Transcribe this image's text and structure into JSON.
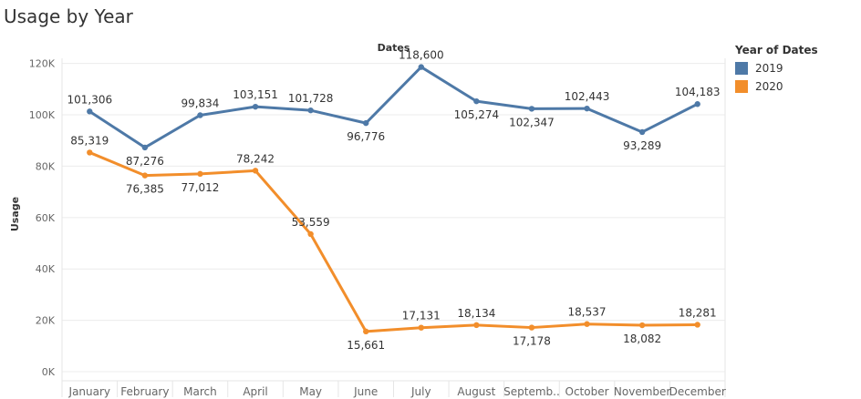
{
  "chart_data": {
    "type": "line",
    "title": "Usage by Year",
    "xlabel": "Dates",
    "ylabel": "Usage",
    "categories": [
      "January",
      "February",
      "March",
      "April",
      "May",
      "June",
      "July",
      "August",
      "Septemb..",
      "October",
      "November",
      "December"
    ],
    "yticks": [
      0,
      20000,
      40000,
      60000,
      80000,
      100000,
      120000
    ],
    "ytick_labels": [
      "0K",
      "20K",
      "40K",
      "60K",
      "80K",
      "100K",
      "120K"
    ],
    "ylim": [
      0,
      122000
    ],
    "grid": true,
    "legend": {
      "title": "Year of Dates",
      "placement": "right"
    },
    "series": [
      {
        "name": "2019",
        "color": "#4e79a7",
        "values": [
          101306,
          87276,
          99834,
          103151,
          101728,
          96776,
          118600,
          105274,
          102347,
          102443,
          93289,
          104183
        ],
        "labels": [
          "101,306",
          "87,276",
          "99,834",
          "103,151",
          "101,728",
          "96,776",
          "118,600",
          "105,274",
          "102,347",
          "102,443",
          "93,289",
          "104,183"
        ]
      },
      {
        "name": "2020",
        "color": "#f28e2b",
        "values": [
          85319,
          76385,
          77012,
          78242,
          53559,
          15661,
          17131,
          18134,
          17178,
          18537,
          18082,
          18281
        ],
        "labels": [
          "85,319",
          "76,385",
          "77,012",
          "78,242",
          "53,559",
          "15,661",
          "17,131",
          "18,134",
          "17,178",
          "18,537",
          "18,082",
          "18,281"
        ]
      }
    ]
  }
}
